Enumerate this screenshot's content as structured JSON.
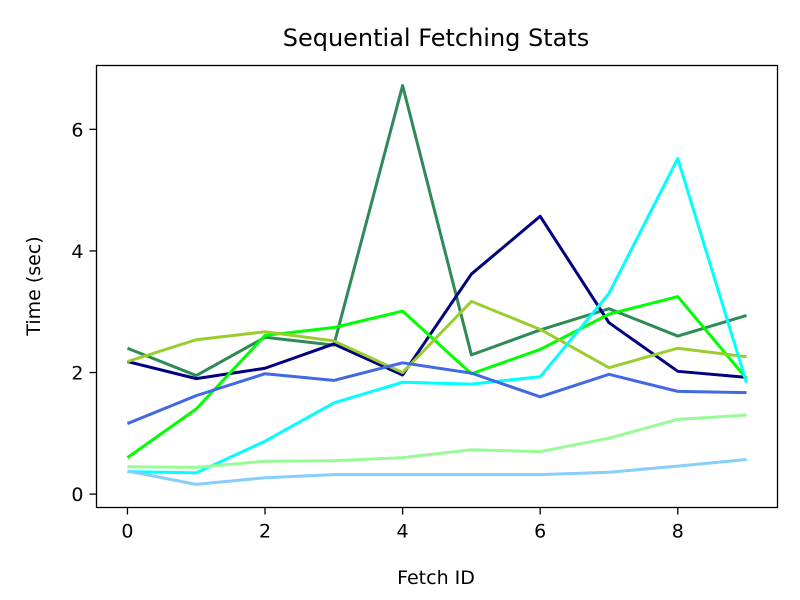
{
  "chart_data": {
    "type": "line",
    "title": "Sequential Fetching Stats",
    "xlabel": "Fetch ID",
    "ylabel": "Time (sec)",
    "x": [
      0,
      1,
      2,
      3,
      4,
      5,
      6,
      7,
      8,
      9
    ],
    "xlim": [
      -0.45,
      9.45
    ],
    "ylim": [
      -0.22,
      7.05
    ],
    "xticks": [
      0,
      2,
      4,
      6,
      8
    ],
    "yticks": [
      0,
      2,
      4,
      6
    ],
    "grid": false,
    "series": [
      {
        "color": "#2e8b57",
        "values": [
          2.4,
          1.95,
          2.58,
          2.45,
          6.72,
          2.29,
          2.7,
          3.05,
          2.6,
          2.94
        ]
      },
      {
        "color": "#000080",
        "values": [
          2.18,
          1.9,
          2.07,
          2.47,
          1.96,
          3.62,
          4.57,
          2.82,
          2.02,
          1.92
        ]
      },
      {
        "color": "#00ff00",
        "values": [
          0.6,
          1.4,
          2.61,
          2.74,
          3.01,
          1.98,
          2.38,
          2.96,
          3.25,
          1.9
        ]
      },
      {
        "color": "#9acd32",
        "values": [
          2.18,
          2.54,
          2.67,
          2.52,
          2.0,
          3.17,
          2.71,
          2.08,
          2.4,
          2.26
        ]
      },
      {
        "color": "#00ffff",
        "values": [
          0.37,
          0.35,
          0.87,
          1.5,
          1.84,
          1.81,
          1.93,
          3.3,
          5.52,
          1.83
        ]
      },
      {
        "color": "#4169e1",
        "values": [
          1.16,
          1.62,
          1.98,
          1.87,
          2.16,
          1.99,
          1.6,
          1.97,
          1.69,
          1.67
        ]
      },
      {
        "color": "#98fb98",
        "values": [
          0.45,
          0.44,
          0.54,
          0.55,
          0.6,
          0.73,
          0.7,
          0.92,
          1.23,
          1.3
        ]
      },
      {
        "color": "#87cefa",
        "values": [
          0.38,
          0.16,
          0.27,
          0.32,
          0.32,
          0.32,
          0.32,
          0.36,
          0.46,
          0.57
        ]
      }
    ]
  }
}
